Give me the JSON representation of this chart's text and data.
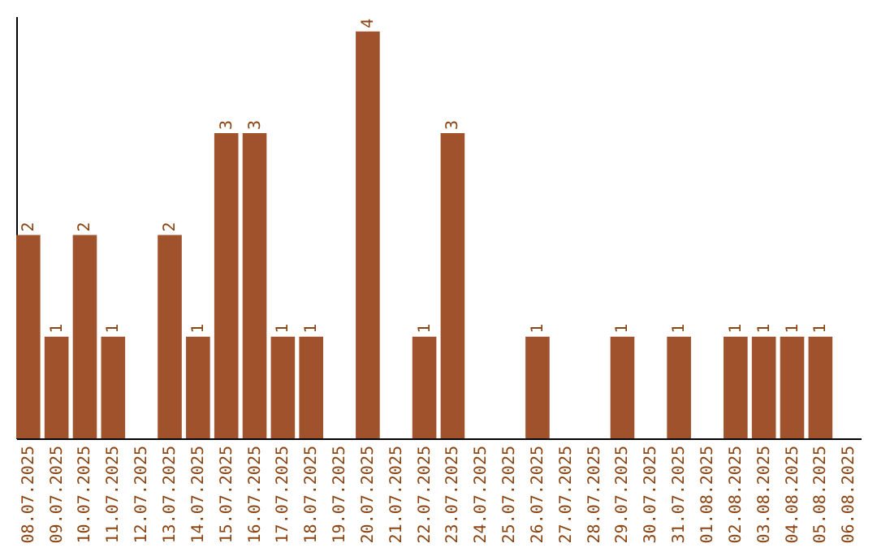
{
  "chart_data": {
    "type": "bar",
    "categories": [
      "08.07.2025",
      "09.07.2025",
      "10.07.2025",
      "11.07.2025",
      "12.07.2025",
      "13.07.2025",
      "14.07.2025",
      "15.07.2025",
      "16.07.2025",
      "17.07.2025",
      "18.07.2025",
      "19.07.2025",
      "20.07.2025",
      "21.07.2025",
      "22.07.2025",
      "23.07.2025",
      "24.07.2025",
      "25.07.2025",
      "26.07.2025",
      "27.07.2025",
      "28.07.2025",
      "29.07.2025",
      "30.07.2025",
      "31.07.2025",
      "01.08.2025",
      "02.08.2025",
      "03.08.2025",
      "04.08.2025",
      "05.08.2025",
      "06.08.2025"
    ],
    "values": [
      2,
      1,
      2,
      1,
      0,
      2,
      1,
      3,
      3,
      1,
      1,
      0,
      4,
      0,
      1,
      3,
      0,
      0,
      1,
      0,
      0,
      1,
      0,
      1,
      0,
      1,
      1,
      1,
      1,
      0
    ],
    "value_labels": [
      "2",
      "1",
      "2",
      "1",
      null,
      "2",
      "1",
      "3",
      "3",
      "1",
      "1",
      null,
      "4",
      null,
      "1",
      "3",
      null,
      null,
      "1",
      null,
      null,
      "1",
      null,
      "1",
      null,
      "1",
      "1",
      "1",
      "1",
      null
    ],
    "color": "#a0522d",
    "ylim": [
      0,
      4.15
    ],
    "tick_labels": "x"
  }
}
